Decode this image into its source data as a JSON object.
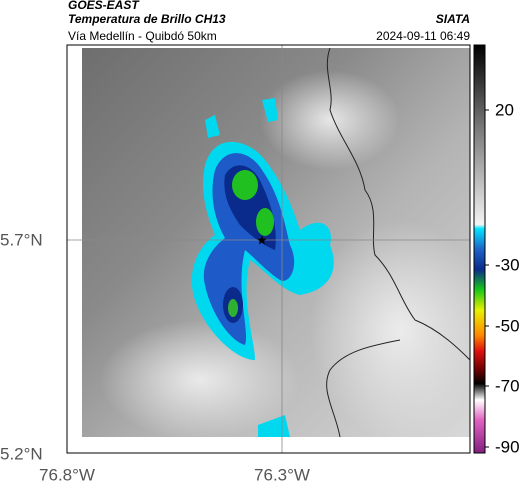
{
  "header": {
    "satellite": "GOES-EAST",
    "product": "Temperatura de Brillo CH13",
    "region": "Vía Medellín - Quibdó 50km",
    "source": "SIATA",
    "timestamp": "2024-09-11 06:49"
  },
  "map": {
    "lat_labels": [
      "5.7°N",
      "5.2°N"
    ],
    "lon_labels": [
      "76.8°W",
      "76.3°W"
    ]
  },
  "colorbar": {
    "tick_labels": [
      "20",
      "-30",
      "-50",
      "-70",
      "-90"
    ]
  }
}
